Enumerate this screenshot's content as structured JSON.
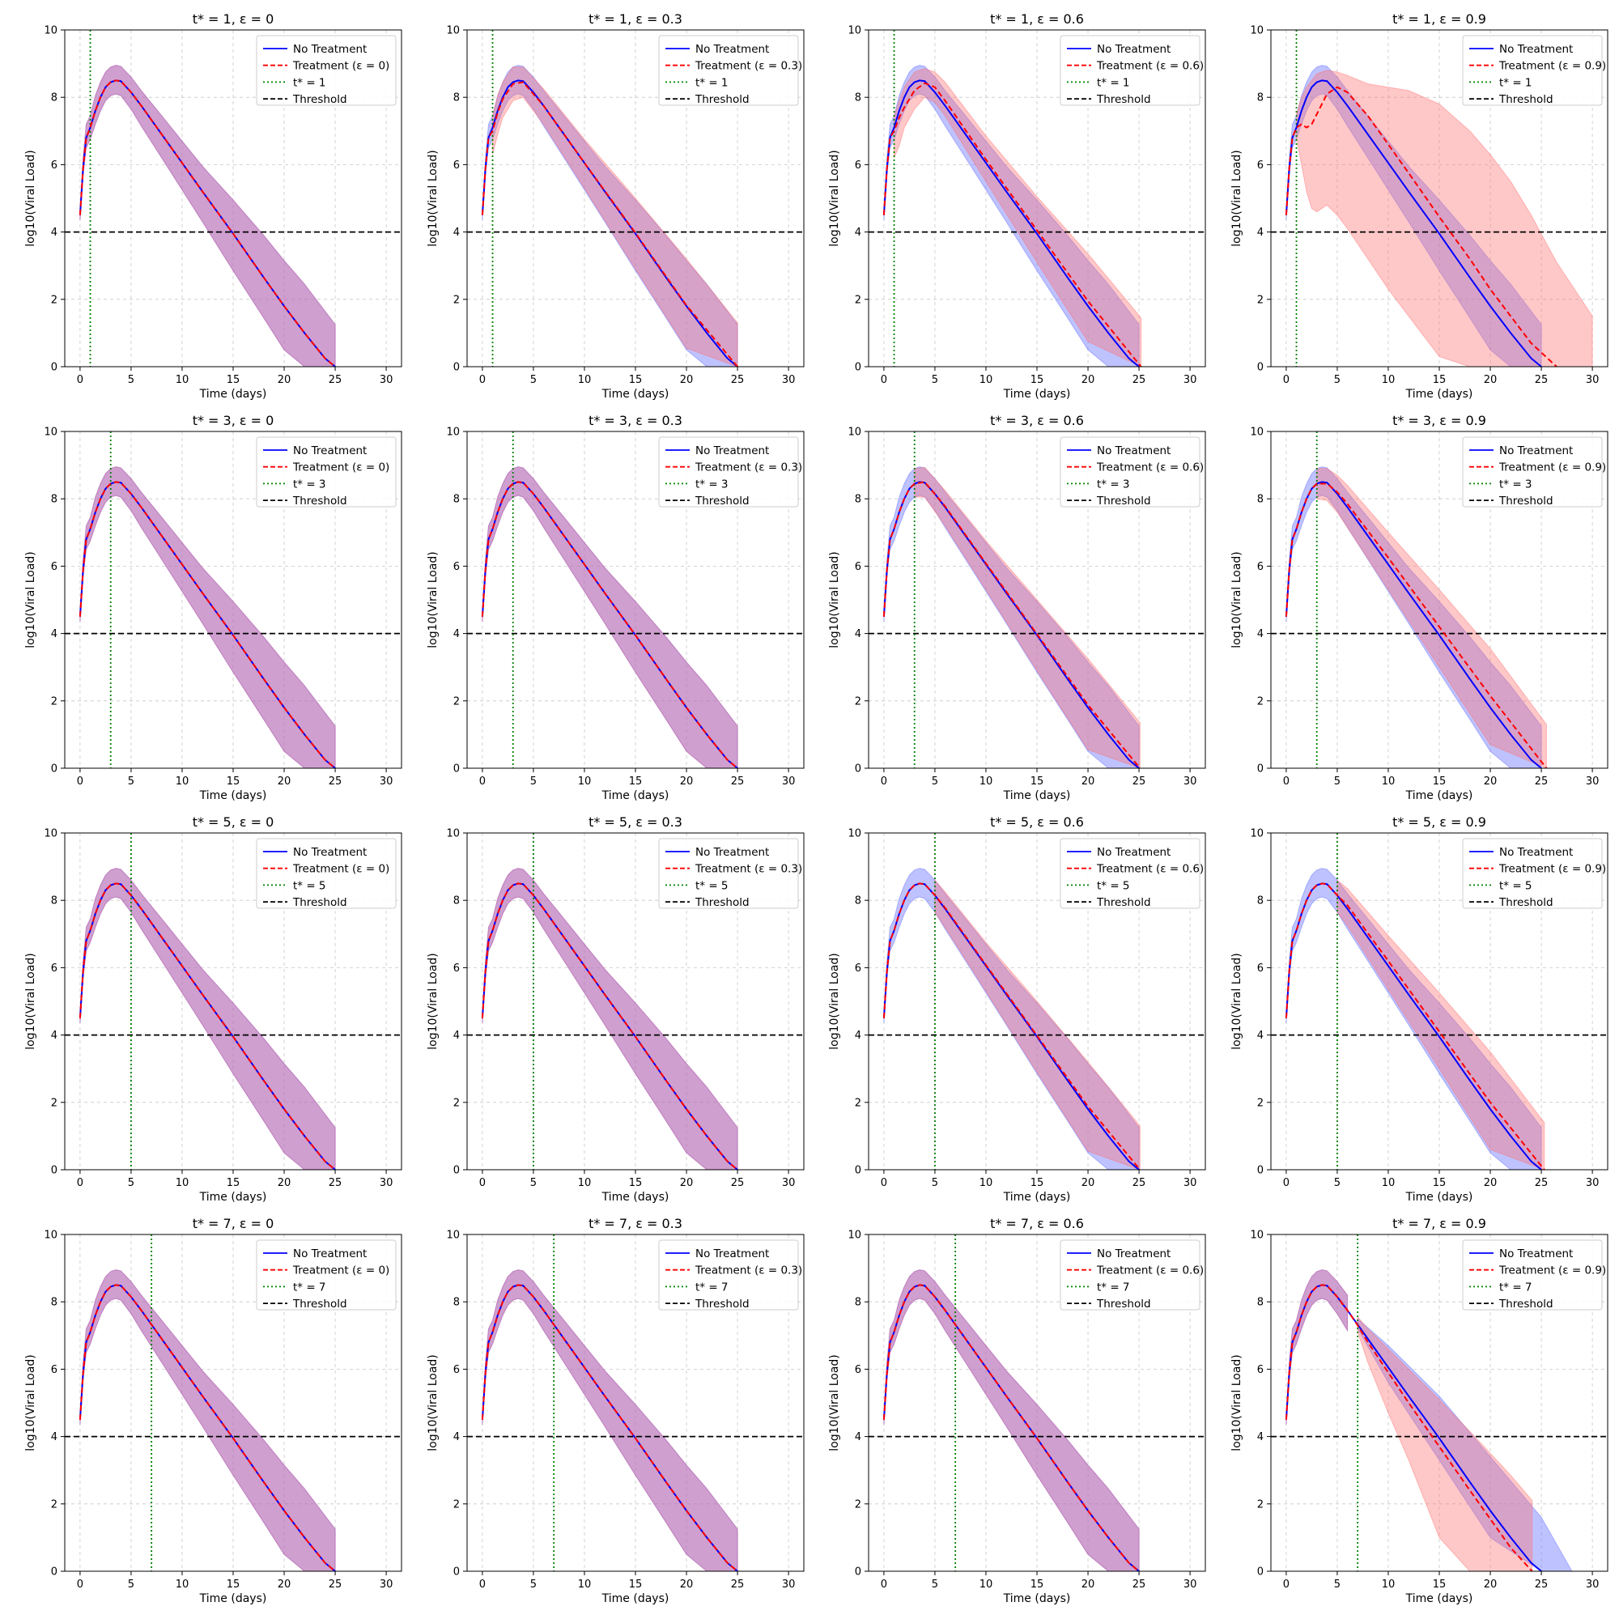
{
  "colors": {
    "no_treatment": "#0000ff",
    "treatment": "#ff0000",
    "tstar_line": "#008000",
    "threshold": "#000000",
    "no_treatment_band": "#6e78ff",
    "treatment_band": "#ff6e6e",
    "overlap_band": "#b56bb5"
  },
  "chart_data": {
    "type": "line",
    "layout": "4x4 grid",
    "xlabel": "Time (days)",
    "ylabel": "log10(Viral Load)",
    "xlim": [
      -1.5,
      31.5
    ],
    "ylim": [
      0,
      10
    ],
    "xticks": [
      0,
      5,
      10,
      15,
      20,
      25,
      30
    ],
    "yticks": [
      0,
      2,
      4,
      6,
      8,
      10
    ],
    "grid": true,
    "legend_position": "upper right",
    "threshold": 4,
    "baseline": {
      "name": "No Treatment",
      "x": [
        0,
        0.3,
        0.6,
        1,
        1.5,
        2,
        2.5,
        3,
        3.5,
        4,
        5,
        6,
        8,
        10,
        12,
        15,
        18,
        20,
        22,
        24,
        25
      ],
      "y": [
        4.5,
        5.9,
        6.8,
        7.1,
        7.6,
        8.0,
        8.3,
        8.45,
        8.5,
        8.48,
        8.15,
        7.75,
        6.9,
        6.05,
        5.2,
        3.95,
        2.65,
        1.8,
        1.0,
        0.25,
        0
      ],
      "band_lower": [
        4.35,
        5.7,
        6.5,
        6.75,
        7.2,
        7.6,
        7.9,
        8.05,
        8.1,
        8.05,
        7.65,
        7.15,
        6.2,
        5.25,
        4.3,
        2.85,
        1.45,
        0.5,
        0,
        0,
        0
      ],
      "band_upper": [
        4.65,
        6.2,
        7.2,
        7.45,
        8.05,
        8.45,
        8.75,
        8.9,
        8.95,
        8.92,
        8.6,
        8.2,
        7.45,
        6.7,
        5.95,
        4.95,
        3.9,
        3.15,
        2.45,
        1.65,
        1.25
      ]
    },
    "panels": [
      {
        "title": "t* = 1, ε = 0",
        "tstar": 1,
        "epsilon": 0,
        "legend": [
          "No Treatment",
          "Treatment (ε = 0)",
          "t* = 1",
          "Threshold"
        ],
        "treatment": {
          "x": [],
          "y": [],
          "band_lower": [],
          "band_upper": []
        }
      },
      {
        "title": "t* = 1, ε = 0.3",
        "tstar": 1,
        "epsilon": 0.3,
        "legend": [
          "No Treatment",
          "Treatment (ε = 0.3)",
          "t* = 1",
          "Threshold"
        ],
        "treatment": {
          "x": [
            1,
            1.5,
            2,
            3,
            4,
            6,
            10,
            15,
            20,
            25
          ],
          "y": [
            7.0,
            7.55,
            7.95,
            8.4,
            8.45,
            7.75,
            6.05,
            3.97,
            1.82,
            0
          ],
          "band_lower": [
            6.3,
            6.9,
            7.4,
            7.9,
            8.0,
            7.2,
            5.3,
            2.9,
            0.55,
            0
          ],
          "band_upper": [
            7.45,
            8.05,
            8.45,
            8.9,
            8.9,
            8.25,
            6.75,
            5.0,
            3.2,
            1.3
          ]
        }
      },
      {
        "title": "t* = 1, ε = 0.6",
        "tstar": 1,
        "epsilon": 0.6,
        "legend": [
          "No Treatment",
          "Treatment (ε = 0.6)",
          "t* = 1",
          "Threshold"
        ],
        "treatment": {
          "x": [
            1,
            1.5,
            2,
            3,
            4,
            5,
            6,
            10,
            15,
            20,
            25.2
          ],
          "y": [
            7.0,
            7.4,
            7.7,
            8.2,
            8.42,
            8.3,
            7.9,
            6.15,
            4.05,
            1.95,
            0
          ],
          "band_lower": [
            6.2,
            6.55,
            7.1,
            7.65,
            8.0,
            7.85,
            7.45,
            5.5,
            3.1,
            0.75,
            0
          ],
          "band_upper": [
            7.45,
            7.9,
            8.3,
            8.75,
            8.85,
            8.75,
            8.45,
            6.85,
            5.05,
            3.35,
            1.45
          ]
        }
      },
      {
        "title": "t* = 1, ε = 0.9",
        "tstar": 1,
        "epsilon": 0.9,
        "legend": [
          "No Treatment",
          "Treatment (ε = 0.9)",
          "t* = 1",
          "Threshold"
        ],
        "treatment": {
          "x": [
            1,
            1.5,
            2,
            2.5,
            3,
            4,
            5,
            6,
            8,
            10,
            12,
            15,
            18,
            20,
            22,
            24,
            26.5
          ],
          "y": [
            7.1,
            7.2,
            7.1,
            7.2,
            7.5,
            8.1,
            8.3,
            8.15,
            7.45,
            6.6,
            5.75,
            4.45,
            3.2,
            2.3,
            1.5,
            0.7,
            0
          ],
          "band_lower": [
            6.8,
            6.0,
            5.2,
            4.7,
            4.6,
            4.8,
            4.5,
            4.1,
            3.2,
            2.3,
            1.5,
            0.3,
            0,
            0,
            0,
            0,
            0
          ],
          "band_upper": [
            7.5,
            8.0,
            8.3,
            8.5,
            8.7,
            8.8,
            8.75,
            8.65,
            8.4,
            8.3,
            8.2,
            7.8,
            7.0,
            6.3,
            5.5,
            4.5,
            3.1
          ],
          "band_x_end": 30,
          "band_upper_end": 1.5
        }
      },
      {
        "title": "t* = 3, ε = 0",
        "tstar": 3,
        "epsilon": 0,
        "legend": [
          "No Treatment",
          "Treatment (ε = 0)",
          "t* = 3",
          "Threshold"
        ],
        "treatment": {
          "x": [],
          "y": [],
          "band_lower": [],
          "band_upper": []
        }
      },
      {
        "title": "t* = 3, ε = 0.3",
        "tstar": 3,
        "epsilon": 0.3,
        "legend": [
          "No Treatment",
          "Treatment (ε = 0.3)",
          "t* = 3",
          "Threshold"
        ],
        "treatment": {
          "x": [],
          "y": [],
          "band_lower": [],
          "band_upper": []
        }
      },
      {
        "title": "t* = 3, ε = 0.6",
        "tstar": 3,
        "epsilon": 0.6,
        "legend": [
          "No Treatment",
          "Treatment (ε = 0.6)",
          "t* = 3",
          "Threshold"
        ],
        "treatment": {
          "x": [
            3,
            4,
            6,
            10,
            15,
            20,
            25.1
          ],
          "y": [
            8.45,
            8.5,
            7.78,
            6.08,
            3.98,
            1.88,
            0
          ],
          "band_lower": [
            8.05,
            8.05,
            7.2,
            5.3,
            2.9,
            0.55,
            0
          ],
          "band_upper": [
            8.9,
            8.93,
            8.25,
            6.75,
            5.0,
            3.25,
            1.35
          ]
        }
      },
      {
        "title": "t* = 3, ε = 0.9",
        "tstar": 3,
        "epsilon": 0.9,
        "legend": [
          "No Treatment",
          "Treatment (ε = 0.9)",
          "t* = 3",
          "Threshold"
        ],
        "treatment": {
          "x": [
            3,
            4,
            5,
            6,
            10,
            15,
            20,
            25.5
          ],
          "y": [
            8.45,
            8.45,
            8.2,
            7.85,
            6.25,
            4.2,
            2.15,
            0
          ],
          "band_lower": [
            8.0,
            7.95,
            7.6,
            7.15,
            5.3,
            3.0,
            0.7,
            0
          ],
          "band_upper": [
            8.9,
            8.9,
            8.7,
            8.4,
            7.0,
            5.3,
            3.55,
            1.3
          ]
        }
      },
      {
        "title": "t* = 5, ε = 0",
        "tstar": 5,
        "epsilon": 0,
        "legend": [
          "No Treatment",
          "Treatment (ε = 0)",
          "t* = 5",
          "Threshold"
        ],
        "treatment": {
          "x": [],
          "y": [],
          "band_lower": [],
          "band_upper": []
        }
      },
      {
        "title": "t* = 5, ε = 0.3",
        "tstar": 5,
        "epsilon": 0.3,
        "legend": [
          "No Treatment",
          "Treatment (ε = 0.3)",
          "t* = 5",
          "Threshold"
        ],
        "treatment": {
          "x": [],
          "y": [],
          "band_lower": [],
          "band_upper": []
        }
      },
      {
        "title": "t* = 5, ε = 0.6",
        "tstar": 5,
        "epsilon": 0.6,
        "legend": [
          "No Treatment",
          "Treatment (ε = 0.6)",
          "t* = 5",
          "Threshold"
        ],
        "treatment": {
          "x": [
            5,
            6,
            10,
            15,
            20,
            25.1
          ],
          "y": [
            8.15,
            7.78,
            6.08,
            3.98,
            1.88,
            0
          ],
          "band_lower": [
            7.65,
            7.2,
            5.3,
            2.9,
            0.55,
            0
          ],
          "band_upper": [
            8.6,
            8.25,
            6.75,
            5.0,
            3.2,
            1.3
          ]
        }
      },
      {
        "title": "t* = 5, ε = 0.9",
        "tstar": 5,
        "epsilon": 0.9,
        "legend": [
          "No Treatment",
          "Treatment (ε = 0.9)",
          "t* = 5",
          "Threshold"
        ],
        "treatment": {
          "x": [
            5,
            6,
            10,
            15,
            20,
            25.3
          ],
          "y": [
            8.15,
            7.85,
            6.2,
            4.1,
            2.0,
            0
          ],
          "band_lower": [
            7.65,
            7.25,
            5.35,
            3.0,
            0.6,
            0
          ],
          "band_upper": [
            8.6,
            8.35,
            6.95,
            5.25,
            3.5,
            1.4
          ]
        }
      },
      {
        "title": "t* = 7, ε = 0",
        "tstar": 7,
        "epsilon": 0,
        "legend": [
          "No Treatment",
          "Treatment (ε = 0)",
          "t* = 7",
          "Threshold"
        ],
        "treatment": {
          "x": [],
          "y": [],
          "band_lower": [],
          "band_upper": []
        }
      },
      {
        "title": "t* = 7, ε = 0.3",
        "tstar": 7,
        "epsilon": 0.3,
        "legend": [
          "No Treatment",
          "Treatment (ε = 0.3)",
          "t* = 7",
          "Threshold"
        ],
        "treatment": {
          "x": [],
          "y": [],
          "band_lower": [],
          "band_upper": []
        }
      },
      {
        "title": "t* = 7, ε = 0.6",
        "tstar": 7,
        "epsilon": 0.6,
        "legend": [
          "No Treatment",
          "Treatment (ε = 0.6)",
          "t* = 7",
          "Threshold"
        ],
        "treatment": {
          "x": [],
          "y": [],
          "band_lower": [],
          "band_upper": []
        }
      },
      {
        "title": "t* = 7, ε = 0.9",
        "tstar": 7,
        "epsilon": 0.9,
        "legend": [
          "No Treatment",
          "Treatment (ε = 0.9)",
          "t* = 7",
          "Threshold"
        ],
        "treatment": {
          "x": [
            7,
            8,
            10,
            12,
            15,
            18,
            20,
            22,
            24.1
          ],
          "y": [
            7.3,
            6.8,
            5.9,
            5.0,
            3.7,
            2.4,
            1.55,
            0.7,
            0
          ],
          "band_lower": [
            7.1,
            6.2,
            4.7,
            3.3,
            1.0,
            0,
            0,
            0,
            0
          ],
          "band_upper": [
            7.55,
            7.2,
            6.6,
            6.0,
            5.1,
            4.15,
            3.5,
            2.85,
            2.1
          ]
        },
        "baseline_band_override": {
          "x_start": 7,
          "x": [
            7,
            10,
            15,
            20,
            25,
            28
          ],
          "band_lower": [
            7.2,
            5.6,
            3.3,
            1.0,
            0,
            0
          ],
          "band_upper": [
            7.5,
            6.7,
            5.2,
            3.4,
            1.6,
            0
          ]
        }
      }
    ]
  }
}
